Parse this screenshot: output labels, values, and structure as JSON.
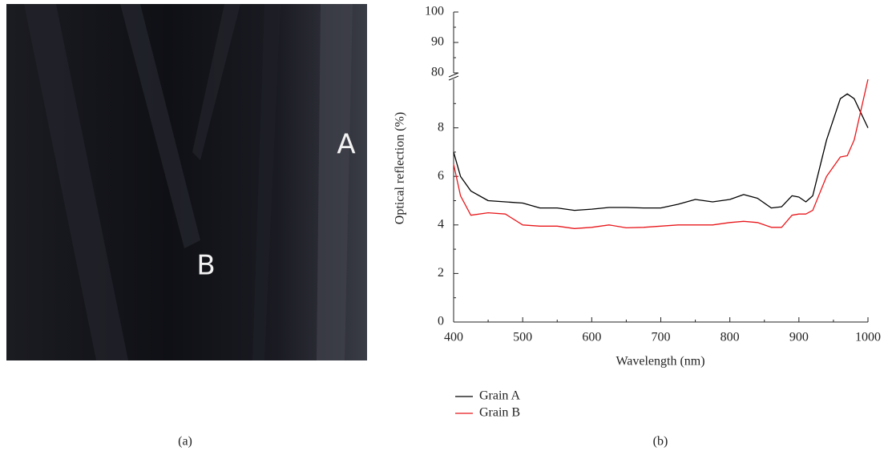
{
  "panel_a": {
    "label_a": "A",
    "label_b": "B",
    "caption": "(a)"
  },
  "chart_data": {
    "type": "line",
    "caption": "(b)",
    "x_label": "Wavelength (nm)",
    "y_label": "Optical reflection (%)",
    "x": [
      400,
      410,
      425,
      450,
      475,
      500,
      525,
      550,
      575,
      600,
      625,
      650,
      675,
      700,
      725,
      750,
      775,
      800,
      820,
      840,
      860,
      875,
      890,
      900,
      910,
      920,
      940,
      960,
      970,
      980,
      1000
    ],
    "series": [
      {
        "name": "Grain A",
        "color": "#000000",
        "values": [
          7.0,
          6.0,
          5.4,
          5.0,
          4.95,
          4.9,
          4.7,
          4.7,
          4.6,
          4.65,
          4.72,
          4.72,
          4.7,
          4.7,
          4.85,
          5.05,
          4.95,
          5.05,
          5.25,
          5.1,
          4.7,
          4.75,
          5.2,
          5.15,
          4.95,
          5.2,
          7.5,
          9.2,
          9.4,
          9.2,
          8.0
        ]
      },
      {
        "name": "Grain B",
        "color": "#e8181c",
        "values": [
          6.5,
          5.2,
          4.4,
          4.5,
          4.45,
          4.0,
          3.95,
          3.95,
          3.85,
          3.9,
          4.0,
          3.88,
          3.9,
          3.95,
          4.0,
          4.0,
          4.0,
          4.1,
          4.15,
          4.1,
          3.9,
          3.9,
          4.4,
          4.45,
          4.45,
          4.6,
          6.0,
          6.8,
          6.85,
          7.5,
          10.0
        ]
      }
    ],
    "xlim": [
      400,
      1000
    ],
    "xticks": [
      400,
      500,
      600,
      700,
      800,
      900,
      1000
    ],
    "xminor": [
      450,
      550,
      650,
      750,
      850,
      950
    ],
    "ylim": [
      0,
      10
    ],
    "yticks": [
      0,
      2,
      4,
      6,
      8
    ],
    "yminor": [
      1,
      3,
      5,
      7,
      9
    ],
    "upper_ylim": [
      80,
      100
    ],
    "upper_yticks": [
      80,
      90,
      100
    ],
    "upper_yminor": [
      85,
      95
    ],
    "grid": false
  }
}
